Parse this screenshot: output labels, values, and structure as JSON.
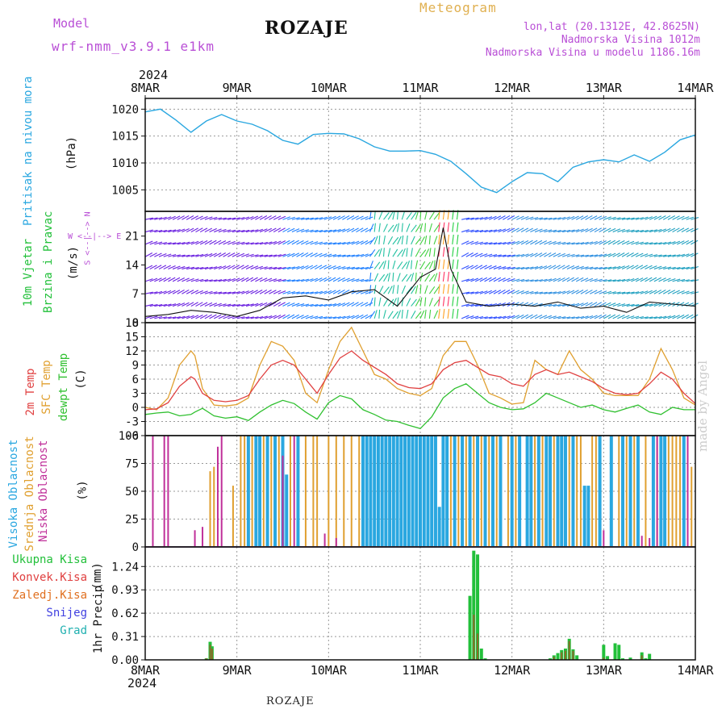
{
  "header": {
    "model_label": "Model",
    "model_name": "wrf-nmm_v3.9.1 e1km",
    "city": "ROZAJE",
    "title": "Meteogram",
    "lonlat": "lon,lat (20.1312E, 42.8625N)",
    "elevation": "Nadmorska Visina 1012m",
    "elevation_model": "Nadmorska Visina u modelu 1186.16m"
  },
  "footer": {
    "city": "ROZAJE",
    "credit": "made by Angel"
  },
  "time_axis": {
    "year": "2024",
    "ticks": [
      "8MAR",
      "9MAR",
      "10MAR",
      "11MAR",
      "12MAR",
      "13MAR",
      "14MAR"
    ]
  },
  "panels": {
    "pressure": {
      "ylabel": "Pritisak na nivou mora",
      "unit": "(hPa)",
      "color": "#2aa7e0"
    },
    "wind": {
      "ylabel_1": "10m Vjetar",
      "ylabel_2": "Brzina i Pravac",
      "unit": "(m/s)",
      "compass": "W <--|--> E",
      "compass_ns": "S <--|--> N",
      "color": "#22c03a"
    },
    "temp": {
      "ylabel_1": "2m Temp",
      "ylabel_2": "SFC Temp",
      "ylabel_3": "dewpt Temp",
      "unit": "(C)",
      "color_2m": "#e04040",
      "color_sfc": "#e0a030",
      "color_dew": "#30c030"
    },
    "cloud": {
      "ylabel_1": "Visoka Oblacnost",
      "ylabel_2": "Srednja Oblacnost",
      "ylabel_3": "Niska Oblacnost",
      "unit": "(%)",
      "color_high": "#2aa7e0",
      "color_mid": "#e0a030",
      "color_low": "#c0309a"
    },
    "precip": {
      "ylabel": "1hr Precip",
      "unit": "(mm)",
      "legend": [
        "Ukupna Kisa",
        "Konvek.Kisa",
        "Zaledj.Kisa",
        "Snijeg",
        "Grad"
      ],
      "legend_colors": [
        "#22c03a",
        "#e04040",
        "#e07020",
        "#4040e0",
        "#20b0b0"
      ]
    }
  },
  "chart_data": [
    {
      "type": "line",
      "name": "pressure",
      "x_unit": "hours since 8MAR 00",
      "x": [
        0,
        4,
        8,
        12,
        16,
        20,
        24,
        28,
        32,
        36,
        40,
        44,
        48,
        52,
        56,
        60,
        64,
        68,
        72,
        76,
        80,
        84,
        88,
        92,
        96,
        100,
        104,
        108,
        112,
        116,
        120,
        124,
        128,
        132,
        136,
        140,
        144
      ],
      "series": [
        {
          "values": [
            1019.5,
            1020,
            1018,
            1015.7,
            1017.8,
            1019,
            1017.8,
            1017.2,
            1016,
            1014.2,
            1013.5,
            1015.3,
            1015.5,
            1015.4,
            1014.5,
            1013,
            1012.2,
            1012.2,
            1012.3,
            1011.6,
            1010.3,
            1008,
            1005.5,
            1004.5,
            1006.5,
            1008.2,
            1008,
            1006.5,
            1009.2,
            1010.2,
            1010.6,
            1010.2,
            1011.5,
            1010.3,
            1012,
            1014.3,
            1015.2
          ]
        }
      ],
      "yticks": [
        1005,
        1010,
        1015,
        1020
      ],
      "ylim": [
        1001,
        1022
      ],
      "xlim": [
        0,
        144
      ]
    },
    {
      "type": "line",
      "name": "wind",
      "x_unit": "hours since 8MAR 00",
      "x": [
        0,
        6,
        12,
        18,
        24,
        30,
        36,
        42,
        48,
        54,
        60,
        66,
        72,
        76,
        78,
        80,
        84,
        90,
        96,
        102,
        108,
        114,
        120,
        126,
        132,
        138,
        144
      ],
      "series": [
        {
          "name": "speed",
          "values": [
            1.5,
            2,
            3,
            2.5,
            1.5,
            3,
            6,
            6.5,
            5.5,
            7.5,
            8,
            4,
            11,
            13,
            23,
            13,
            5,
            4,
            4.5,
            4,
            5,
            3.5,
            4,
            2.5,
            5,
            4.5,
            4
          ]
        }
      ],
      "yticks": [
        0,
        7,
        14,
        21
      ],
      "ylim": [
        0,
        27
      ],
      "xlim": [
        0,
        144
      ]
    },
    {
      "type": "line",
      "name": "temperature",
      "x_unit": "hours since 8MAR 00",
      "x": [
        0,
        3,
        6,
        9,
        12,
        13,
        15,
        18,
        21,
        24,
        27,
        30,
        33,
        36,
        39,
        42,
        45,
        48,
        51,
        54,
        57,
        60,
        63,
        66,
        69,
        72,
        75,
        78,
        81,
        84,
        87,
        90,
        93,
        96,
        99,
        102,
        105,
        108,
        111,
        114,
        117,
        120,
        123,
        126,
        129,
        132,
        135,
        138,
        141,
        144
      ],
      "series": [
        {
          "name": "2m",
          "values": [
            -0.5,
            -0.3,
            1,
            4.5,
            6.5,
            6,
            3,
            1.5,
            1.2,
            1.5,
            2.5,
            6,
            9,
            10,
            9,
            6,
            3,
            7,
            10.5,
            12,
            10,
            8.5,
            7,
            5,
            4.2,
            4,
            5,
            8,
            9.5,
            10,
            8.5,
            7,
            6.5,
            5,
            4.5,
            7,
            8,
            7,
            7.5,
            6.5,
            5.5,
            4,
            3,
            2.7,
            3,
            5,
            7.5,
            6,
            3,
            0.8
          ]
        },
        {
          "name": "sfc",
          "values": [
            0,
            -0.5,
            2,
            9,
            12,
            11,
            4,
            0.5,
            0.3,
            0.6,
            2,
            9,
            14,
            13,
            10,
            3,
            1,
            8,
            14,
            17,
            12,
            7,
            6,
            4,
            3,
            2.5,
            4,
            11,
            14,
            14,
            9,
            3,
            2,
            0.7,
            1,
            10,
            8,
            7,
            12,
            8,
            6,
            3,
            2.5,
            2.5,
            2.5,
            6,
            12.5,
            8,
            2,
            0.5
          ]
        },
        {
          "name": "dewpt",
          "values": [
            -1.5,
            -1.2,
            -1,
            -1.8,
            -1.5,
            -1,
            -0.2,
            -1.8,
            -2.3,
            -2,
            -2.8,
            -1,
            0.5,
            1.5,
            0.8,
            -1,
            -2.5,
            1,
            2.5,
            1.8,
            -0.5,
            -1.5,
            -2.7,
            -3,
            -3.8,
            -4.5,
            -2,
            2,
            4,
            5,
            3,
            1,
            0,
            -0.5,
            -0.3,
            1,
            3,
            2,
            1,
            0,
            0.5,
            -0.5,
            -1,
            -0.2,
            0.5,
            -1,
            -1.5,
            0,
            -0.5,
            -0.5
          ]
        }
      ],
      "yticks": [
        -6,
        -3,
        0,
        3,
        6,
        9,
        12,
        15,
        18
      ],
      "ylim": [
        -6,
        18
      ],
      "xlim": [
        0,
        144
      ]
    },
    {
      "type": "bar",
      "name": "cloud cover",
      "x_unit": "hours since 8MAR 00",
      "yticks": [
        0,
        25,
        50,
        75,
        100
      ],
      "ylim": [
        0,
        100
      ],
      "xlim": [
        0,
        144
      ],
      "series": [
        {
          "name": "low",
          "x": [
            2,
            5,
            6,
            13,
            15,
            19,
            20,
            36,
            39,
            47,
            50,
            120,
            130,
            132,
            134,
            142
          ],
          "values": [
            100,
            100,
            100,
            15,
            18,
            90,
            100,
            82,
            100,
            12,
            8,
            15,
            10,
            8,
            100,
            100
          ]
        },
        {
          "name": "mid",
          "x": [
            17,
            18,
            23,
            25,
            26,
            28,
            29,
            31,
            33,
            35,
            38,
            40,
            42,
            44,
            45,
            48,
            50,
            52,
            54,
            56,
            58,
            80,
            82,
            84,
            86,
            88,
            90,
            92,
            95,
            97,
            100,
            102,
            104,
            105,
            107,
            110,
            111,
            113,
            114,
            117,
            118,
            122,
            124,
            126,
            128,
            131,
            134,
            137,
            138,
            139,
            140,
            143
          ],
          "values": [
            68,
            72,
            55,
            100,
            100,
            100,
            100,
            100,
            100,
            100,
            100,
            100,
            100,
            100,
            100,
            100,
            100,
            100,
            100,
            100,
            100,
            100,
            100,
            100,
            100,
            100,
            100,
            100,
            100,
            100,
            100,
            100,
            100,
            100,
            100,
            100,
            100,
            100,
            100,
            100,
            100,
            100,
            100,
            100,
            100,
            100,
            100,
            100,
            100,
            100,
            100,
            72
          ]
        },
        {
          "name": "high",
          "x": [
            27,
            29,
            30,
            32,
            34,
            36,
            37,
            40,
            57,
            58,
            59,
            60,
            61,
            62,
            63,
            64,
            65,
            66,
            67,
            68,
            69,
            70,
            71,
            72,
            73,
            74,
            75,
            76,
            77,
            78,
            79,
            81,
            83,
            85,
            87,
            89,
            91,
            93,
            96,
            98,
            100,
            101,
            103,
            105,
            106,
            108,
            109,
            110,
            112,
            115,
            116,
            119,
            122,
            125,
            127,
            129,
            133,
            135,
            136,
            141
          ],
          "values": [
            100,
            100,
            100,
            100,
            100,
            100,
            65,
            100,
            100,
            100,
            100,
            100,
            100,
            100,
            100,
            100,
            100,
            100,
            100,
            100,
            100,
            100,
            100,
            100,
            100,
            100,
            100,
            100,
            36,
            100,
            100,
            100,
            100,
            100,
            100,
            100,
            100,
            100,
            100,
            100,
            100,
            100,
            100,
            100,
            100,
            100,
            100,
            100,
            100,
            55,
            55,
            100,
            100,
            100,
            100,
            100,
            100,
            100,
            100,
            100
          ]
        }
      ]
    },
    {
      "type": "bar",
      "name": "1hr precip",
      "x_unit": "hours since 8MAR 00",
      "yticks": [
        0,
        0.31,
        0.62,
        0.93,
        1.24
      ],
      "ylim": [
        0,
        1.5
      ],
      "xlim": [
        0,
        144
      ],
      "series": [
        {
          "name": "total",
          "x": [
            16,
            17,
            17.5,
            85,
            86,
            87,
            88,
            89,
            106,
            107,
            108,
            109,
            110,
            111,
            112,
            113,
            120,
            121,
            123,
            124,
            125,
            127,
            130,
            131,
            132
          ],
          "values": [
            0.02,
            0.24,
            0.18,
            0.85,
            1.45,
            1.4,
            0.15,
            0.02,
            0.02,
            0.06,
            0.09,
            0.13,
            0.15,
            0.28,
            0.14,
            0.06,
            0.2,
            0.05,
            0.22,
            0.2,
            0.02,
            0.03,
            0.1,
            0.02,
            0.08
          ]
        },
        {
          "name": "convective",
          "x": [
            16,
            17,
            17.5,
            86,
            87,
            107,
            109,
            110,
            111,
            112,
            120,
            130
          ],
          "values": [
            0.02,
            0.2,
            0.15,
            0.6,
            0.35,
            0.04,
            0.1,
            0.12,
            0.25,
            0.12,
            0.03,
            0.06
          ]
        }
      ]
    }
  ]
}
